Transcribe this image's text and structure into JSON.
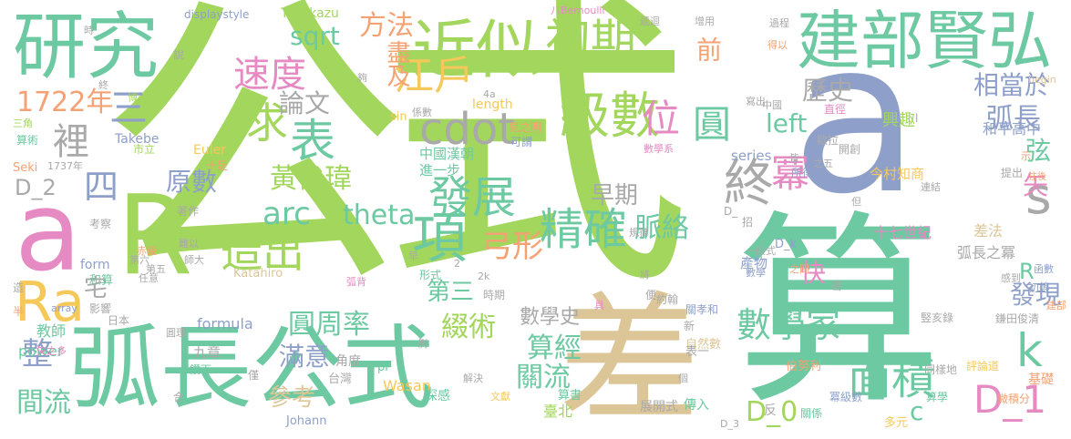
{
  "palette": {
    "lime": "#a3d65c",
    "teal": "#6cc9a1",
    "sand": "#dcc697",
    "slate": "#8ea0c9",
    "pink": "#e58ac2",
    "gold": "#f5c85a",
    "orange": "#f4a173",
    "gray": "#a9a9a9",
    "mint": "#8fd4b4",
    "blue": "#7b92c4"
  },
  "words": {
    "gongshi": "公式",
    "suan": "算",
    "cha": "差",
    "a": "a",
    "hu_chang_gong_shi": "弧長公式",
    "jian_bu_xian_hong": "建部賢弘",
    "yan_jiu": "研究",
    "jin_si": "近似",
    "R": "R",
    "a_small": "a",
    "Ra": "Ra",
    "chu_qi": "初期",
    "ji_shu": "級數",
    "s": "s",
    "k": "k",
    "cdot": "cdot",
    "zhong": "終",
    "mian_ji": "面積",
    "D_1": "D_1",
    "fa_zhan": "發展",
    "jing_que": "精確",
    "xiang": "項",
    "zao_chu": "造出",
    "biao": "表",
    "qiu": "求",
    "wei": "位",
    "yuan": "圓",
    "mi": "冪",
    "jiang_hu": "江戶",
    "su_du": "速度",
    "shu_xue_jia": "數學家",
    "huang_jun_wei": "黃俊瑋",
    "hu_chang": "弧長",
    "D_0": "D_0",
    "zhuo_shu": "綴術",
    "yuan_zhou_lu": "圓周率",
    "suan_jing": "算經",
    "guan_liu": "關流",
    "san": "三",
    "li": "裡",
    "nian_1722": "1722年",
    "mai_luo": "脈絡",
    "sqrt": "sqrt",
    "fang_fa": "方法",
    "jin_ji": "盡及",
    "arc": "arc",
    "theta": "theta",
    "gong_xing": "弓形",
    "qian": "前",
    "zao_qi": "早期",
    "man_yi": "滿意",
    "can_kao": "參考",
    "zheng": "整",
    "jian_liu": "間流",
    "di_san": "第三",
    "lun_wen": "論文",
    "yuan_shu": "原數",
    "li_shi": "歷史",
    "xiang_dang_yu": "相當於",
    "left": "left",
    "xian": "弦",
    "shi": "矢",
    "kuai": "快",
    "fa_xian": "發現",
    "shu_xue_shi": "數學史",
    "R_small": "R",
    "c": "c",
    "si": "四",
    "D_2": "D_2",
    "zhai": "宅",
    "length": "length",
    "formula": "formula",
    "power": "power",
    "Wasan": "Wasan",
    "series": "series",
    "xing_qu": "興趣",
    "he_ping_gao_zhong": "和平高中",
    "shi_qi_shi_ji": "十七世紀",
    "hu_chang_zhi_mi": "弧長之冪",
    "cha_fa": "差法",
    "chan_wu": "產物",
    "jin_cun_zhi_shang": "今村知商",
    "zhong_guo_han_chao": "中國漢朝",
    "jin_yi_bu": "進一步",
    "displaystyle": "displaystyle",
    "Takakazu": "Takakazu",
    "Bernoulli": "八Bernoulli",
    "Euler": "Euler",
    "Takebe": "Takebe",
    "Katahiro": "Katahiro",
    "Johann": "Johann",
    "begin": "begin",
    "array": "array",
    "form": "form",
    "Seki": "Seki",
    "pi": "pi",
    "sin": "sin",
    "year_1737": "1737年",
    "jiao_shi": "教師",
    "ri_ben": "日本",
    "jiu_zhang": "九章",
    "jiao_du": "角度",
    "tai_bei": "臺北",
    "tai_wan": "台灣",
    "zhan_kai_shi": "展開式",
    "shen_gan": "深感",
    "suan_shu": "算書",
    "chuan_ru": "傳入",
    "guan_xi": "關係",
    "duo_yuan": "多元",
    "wei_ji_fen": "微積分",
    "ji_chu": "基礎",
    "ping_lun_dao": "評論道",
    "tong_yang_di": "同樣地",
    "suan_xue": "算學",
    "mi_ji_shu": "冪級數",
    "bo_nu_li": "伯努利",
    "yue_zhen": "約翰",
    "guan_xiao_he": "關孝和",
    "zi_ran_shu": "自然數",
    "yi_bian_lu": "竪亥錄",
    "lian_tian_jun_qing": "鎌田俊清",
    "yi_ban_shi": "一般式",
    "xing_shi": "形式",
    "shi_qi": "時期",
    "jian_zhi_ming": "見之明",
    "ke_wei": "可謂",
    "shu_xue_xi": "數學系",
    "gui_lv": "規律",
    "xi_shu": "係數",
    "xie_chu": "寫出",
    "zhi_jing": "直徑",
    "kai_chuang": "開創",
    "ou_la": "歐拉",
    "suo_de": "所得",
    "ti_chu": "提出",
    "lian_jie": "連結",
    "hu_bei": "弧背",
    "shi_zu": "十足",
    "bo_shi": "博士",
    "san_jiao": "三角",
    "suan_shu2": "算術",
    "shi_li": "市立",
    "kao_cha": "考察",
    "zhu_zuo": "著作",
    "yi_yi": "難以",
    "he_suan": "和算",
    "ying_xiang": "影響",
    "ren_yi": "任意",
    "di_wu": "第五",
    "di_liu": "第六",
    "zhou_li": "圓理",
    "shi_zhi_duo": "矢之多",
    "ban": "半",
    "jing_xia": "鑽下",
    "he": "合",
    "jin": "僅",
    "li_zi": "例",
    "xin": "新",
    "jie_jue": "解決",
    "wen_xian": "文獻",
    "bian": "便",
    "ju": "具",
    "ji": "記",
    "chu_deng": "初等",
    "han_shu": "函數",
    "gan_dao": "感到",
    "jian_bu": "建部",
    "mi_small": "密",
    "di_gui": "遞迴",
    "zeng_yong": "增用",
    "guo_cheng": "過程",
    "de_yi": "得以",
    "shi_small": "示",
    "wang_hou": "往後",
    "zhi_wu": "之五",
    "shuo": "說",
    "shi_zhong": "時",
    "gou": "夠",
    "ge": "個",
    "zhao": "招",
    "zao": "早",
    "zao2": "造",
    "jiang": "將",
    "dan": "但",
    "D_small": "D_",
    "D_k": "D_k",
    "D_3": "D_3",
    "shu_xue": "數學",
    "zhi_zhou": "之間",
    "jie": "皆",
    "zhong_guo": "中國",
    "fan": "反",
    "biao_yi": "表一",
    "chi_fan": "赤飯",
    "ci_da": "師大",
    "four_a": "4a",
    "two_k": "2k",
    "l_small": "l",
    "two": "2"
  }
}
